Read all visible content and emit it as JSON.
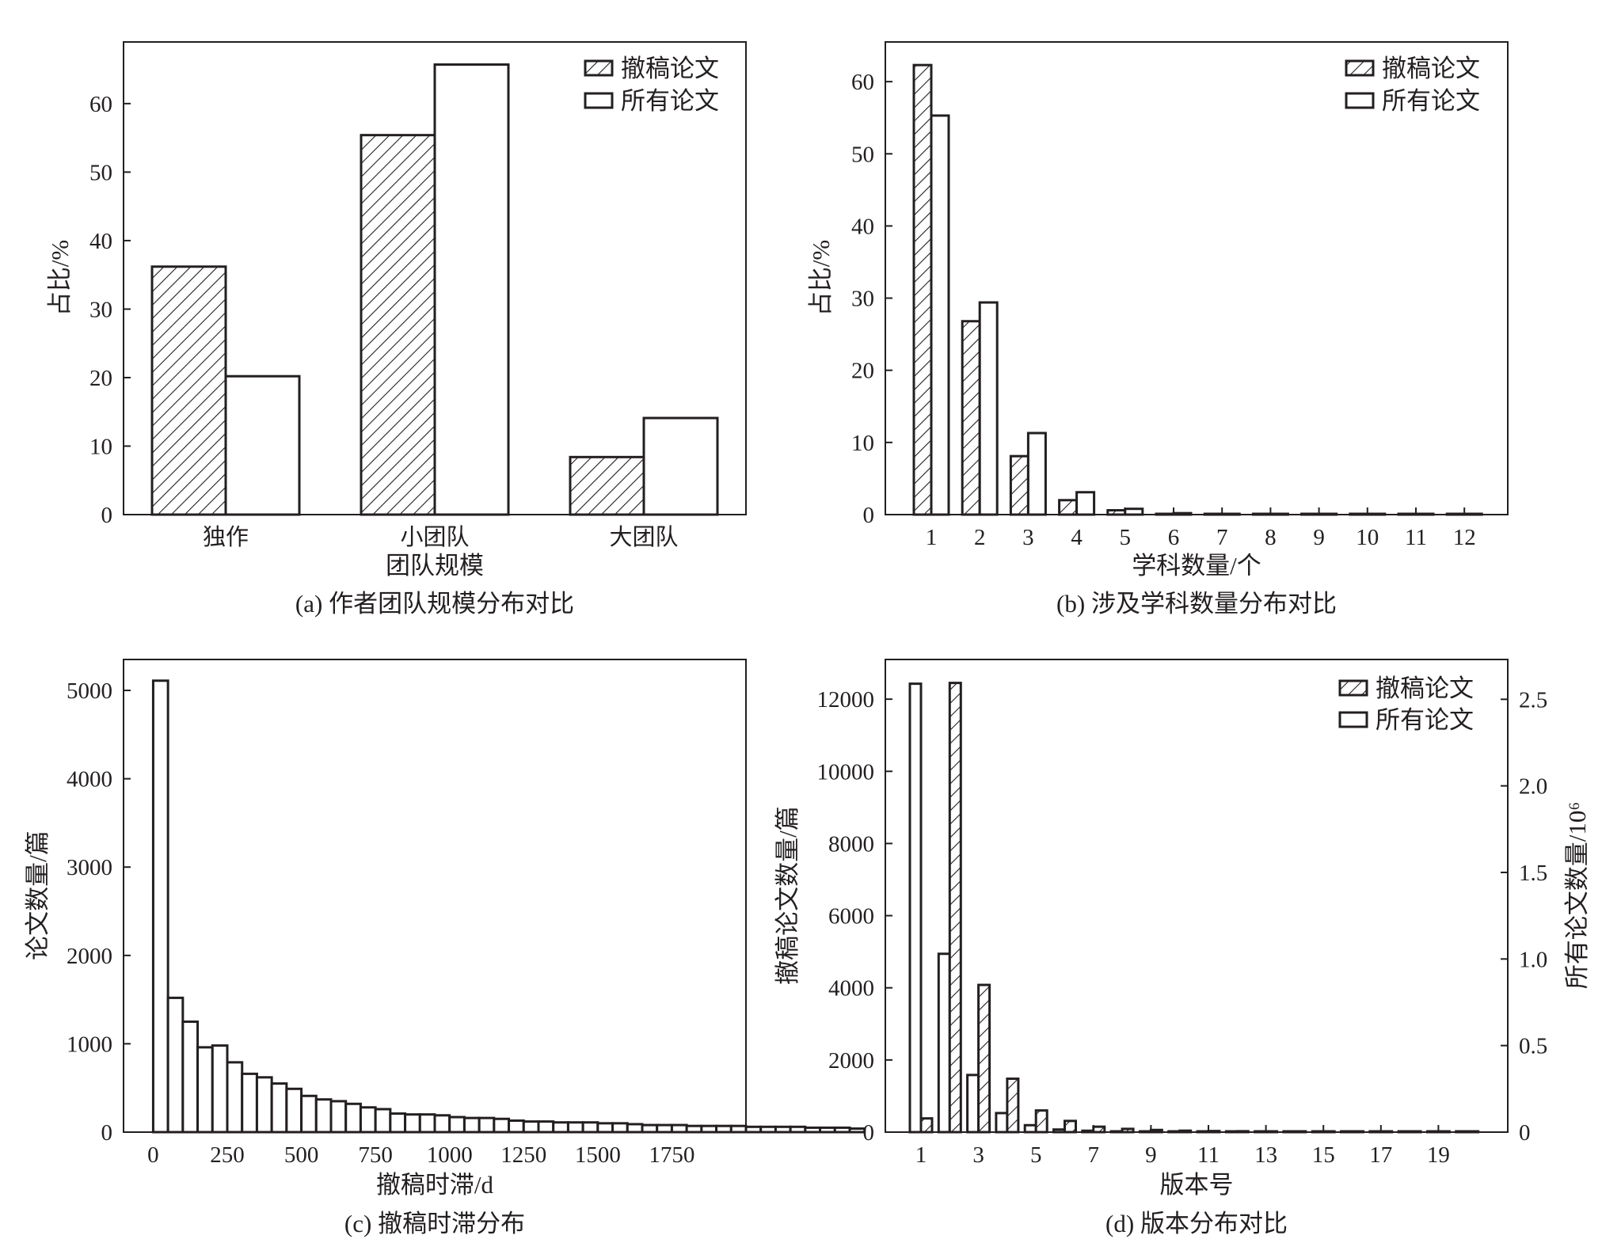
{
  "chart_data": [
    {
      "id": "a",
      "type": "bar",
      "caption": "(a) 作者团队规模分布对比",
      "xlabel": "团队规模",
      "ylabel": "占比/%",
      "categories": [
        "独作",
        "小团队",
        "大团队"
      ],
      "ylim": [
        0,
        69
      ],
      "yticks": [
        0,
        10,
        20,
        30,
        40,
        50,
        60
      ],
      "legend": "top-right",
      "series": [
        {
          "name": "撤稿论文",
          "style": "hatched",
          "values": [
            36.2,
            55.4,
            8.4
          ]
        },
        {
          "name": "所有论文",
          "style": "open",
          "values": [
            20.2,
            65.7,
            14.1
          ]
        }
      ]
    },
    {
      "id": "b",
      "type": "bar",
      "caption": "(b) 涉及学科数量分布对比",
      "xlabel": "学科数量/个",
      "ylabel": "占比/%",
      "categories": [
        "1",
        "2",
        "3",
        "4",
        "5",
        "6",
        "7",
        "8",
        "9",
        "10",
        "11",
        "12"
      ],
      "ylim": [
        0,
        65.5
      ],
      "yticks": [
        0,
        10,
        20,
        30,
        40,
        50,
        60
      ],
      "legend": "top-right",
      "series": [
        {
          "name": "撤稿论文",
          "style": "hatched",
          "values": [
            62.3,
            26.8,
            8.1,
            2.0,
            0.6,
            0.1,
            0.05,
            0.03,
            0.02,
            0.01,
            0.01,
            0.01
          ]
        },
        {
          "name": "所有论文",
          "style": "open",
          "values": [
            55.3,
            29.4,
            11.3,
            3.1,
            0.8,
            0.2,
            0.05,
            0.03,
            0.02,
            0.01,
            0.01,
            0.01
          ]
        }
      ]
    },
    {
      "id": "c",
      "type": "bar",
      "caption": "(c) 撤稿时滞分布",
      "xlabel": "撤稿时滞/d",
      "ylabel": "论文数量/篇",
      "bin_width": 50,
      "bin_start": 0,
      "xlim": [
        -100,
        2000
      ],
      "xticks": [
        0,
        250,
        500,
        750,
        1000,
        1250,
        1500,
        1750
      ],
      "ylim": [
        0,
        5350
      ],
      "yticks": [
        0,
        1000,
        2000,
        3000,
        4000,
        5000
      ],
      "values": [
        5110,
        1520,
        1250,
        960,
        980,
        790,
        660,
        620,
        550,
        490,
        410,
        370,
        350,
        320,
        280,
        260,
        210,
        200,
        200,
        190,
        170,
        160,
        160,
        150,
        130,
        120,
        120,
        110,
        110,
        110,
        100,
        100,
        90,
        80,
        80,
        80,
        70,
        70,
        70,
        70,
        60,
        60,
        60,
        60,
        50,
        50,
        50,
        40
      ]
    },
    {
      "id": "d",
      "type": "bar",
      "caption": "(d) 版本分布对比",
      "xlabel": "版本号",
      "ylabel": "撤稿论文数量/篇",
      "ylabel_right": "所有论文数量/10⁶",
      "categories": [
        "1",
        "2",
        "3",
        "4",
        "5",
        "6",
        "7",
        "8",
        "9",
        "10",
        "11",
        "12",
        "13",
        "14",
        "15",
        "16",
        "17",
        "18",
        "19",
        "20"
      ],
      "xtick_labels": [
        "1",
        "3",
        "5",
        "7",
        "9",
        "11",
        "13",
        "15",
        "17",
        "19"
      ],
      "ylim_left": [
        0,
        13100
      ],
      "yticks_left": [
        0,
        2000,
        4000,
        6000,
        8000,
        10000,
        12000
      ],
      "ylim_right": [
        0,
        2.73
      ],
      "yticks_right": [
        "0",
        "0.5",
        "1.0",
        "1.5",
        "2.0",
        "2.5"
      ],
      "legend": "top-right",
      "series": [
        {
          "name": "撤稿论文",
          "style": "hatched",
          "axis": "left",
          "values": [
            380,
            12450,
            4080,
            1480,
            600,
            310,
            150,
            90,
            60,
            40,
            30,
            25,
            20,
            15,
            12,
            10,
            8,
            6,
            5,
            4
          ]
        },
        {
          "name": "所有论文",
          "style": "open",
          "axis": "right",
          "values": [
            2.59,
            1.03,
            0.33,
            0.11,
            0.04,
            0.015,
            0.008,
            0.004,
            0.003,
            0.002,
            0.001,
            0.001,
            0.001,
            0.0005,
            0.0005,
            0.0005,
            0.0005,
            0.0005,
            0.0005,
            0.0005
          ]
        }
      ]
    }
  ]
}
